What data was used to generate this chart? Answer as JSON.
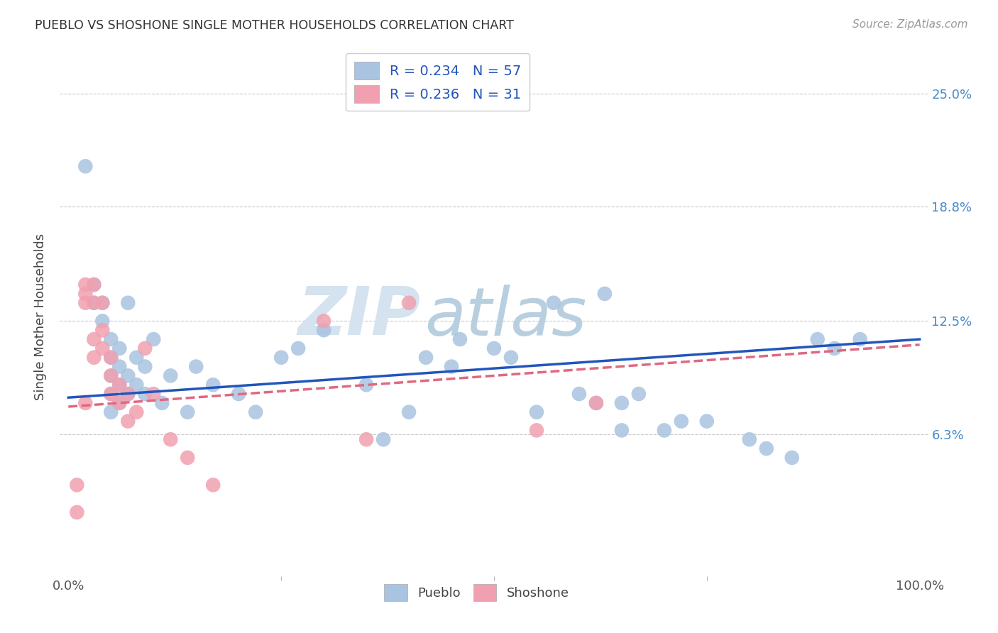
{
  "title": "PUEBLO VS SHOSHONE SINGLE MOTHER HOUSEHOLDS CORRELATION CHART",
  "source": "Source: ZipAtlas.com",
  "ylabel": "Single Mother Households",
  "xlim": [
    0,
    100
  ],
  "ylim": [
    0,
    26.5
  ],
  "yticks": [
    6.3,
    12.5,
    18.8,
    25.0
  ],
  "ytick_labels": [
    "6.3%",
    "12.5%",
    "18.8%",
    "25.0%"
  ],
  "xticks": [
    0,
    100
  ],
  "xtick_labels": [
    "0.0%",
    "100.0%"
  ],
  "pueblo_R": 0.234,
  "pueblo_N": 57,
  "shoshone_R": 0.236,
  "shoshone_N": 31,
  "pueblo_color": "#a8c4e0",
  "shoshone_color": "#f0a0b0",
  "pueblo_line_color": "#2255bb",
  "shoshone_line_color": "#e06880",
  "background_color": "#ffffff",
  "grid_color": "#c8c8c8",
  "watermark_color": "#ccd8e8",
  "pueblo_x": [
    2,
    3,
    3,
    4,
    4,
    5,
    5,
    5,
    5,
    5,
    6,
    6,
    6,
    6,
    7,
    7,
    7,
    8,
    8,
    9,
    9,
    10,
    11,
    12,
    14,
    15,
    17,
    20,
    22,
    25,
    27,
    30,
    35,
    37,
    40,
    42,
    45,
    46,
    50,
    52,
    55,
    57,
    60,
    62,
    63,
    65,
    65,
    67,
    70,
    72,
    75,
    80,
    82,
    85,
    88,
    90,
    93
  ],
  "pueblo_y": [
    21.0,
    14.5,
    13.5,
    13.5,
    12.5,
    11.5,
    10.5,
    9.5,
    8.5,
    7.5,
    11.0,
    10.0,
    9.0,
    8.0,
    13.5,
    9.5,
    8.5,
    10.5,
    9.0,
    10.0,
    8.5,
    11.5,
    8.0,
    9.5,
    7.5,
    10.0,
    9.0,
    8.5,
    7.5,
    10.5,
    11.0,
    12.0,
    9.0,
    6.0,
    7.5,
    10.5,
    10.0,
    11.5,
    11.0,
    10.5,
    7.5,
    13.5,
    8.5,
    8.0,
    14.0,
    8.0,
    6.5,
    8.5,
    6.5,
    7.0,
    7.0,
    6.0,
    5.5,
    5.0,
    11.5,
    11.0,
    11.5
  ],
  "shoshone_x": [
    1,
    1,
    2,
    2,
    2,
    2,
    3,
    3,
    3,
    3,
    4,
    4,
    4,
    5,
    5,
    5,
    6,
    6,
    7,
    7,
    8,
    9,
    10,
    12,
    14,
    17,
    30,
    35,
    40,
    55,
    62
  ],
  "shoshone_y": [
    3.5,
    2.0,
    14.5,
    14.0,
    13.5,
    8.0,
    14.5,
    13.5,
    11.5,
    10.5,
    13.5,
    12.0,
    11.0,
    10.5,
    9.5,
    8.5,
    9.0,
    8.0,
    8.5,
    7.0,
    7.5,
    11.0,
    8.5,
    6.0,
    5.0,
    3.5,
    12.5,
    6.0,
    13.5,
    6.5,
    8.0
  ],
  "trend_pueblo_x0": 0,
  "trend_pueblo_y0": 8.3,
  "trend_pueblo_x1": 100,
  "trend_pueblo_y1": 11.5,
  "trend_shoshone_x0": 0,
  "trend_shoshone_y0": 7.8,
  "trend_shoshone_x1": 100,
  "trend_shoshone_y1": 11.2
}
